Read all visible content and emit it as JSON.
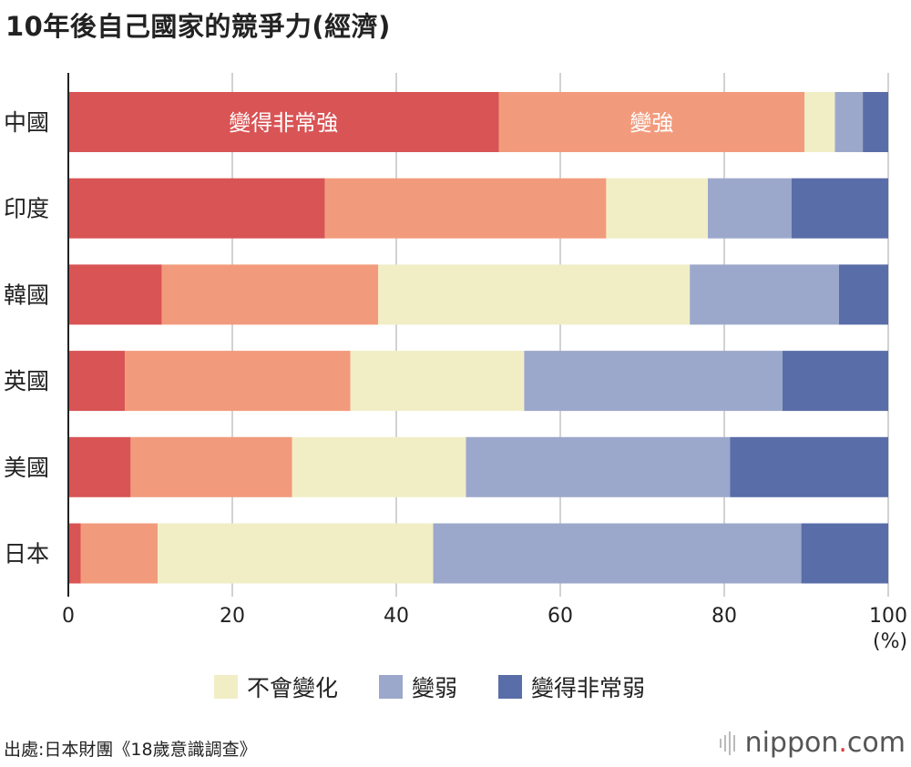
{
  "title": "10年後自己國家的競爭力(經濟)",
  "chart_data": {
    "type": "bar",
    "orientation": "horizontal",
    "stacked": true,
    "categories": [
      "中國",
      "印度",
      "韓國",
      "英國",
      "美國",
      "日本"
    ],
    "series": [
      {
        "name": "變得非常強",
        "color": "#d95455",
        "values": [
          52.5,
          31.3,
          11.4,
          6.9,
          7.6,
          1.5
        ]
      },
      {
        "name": "變強",
        "color": "#f29b7c",
        "values": [
          37.3,
          34.3,
          26.4,
          27.5,
          19.7,
          9.4
        ]
      },
      {
        "name": "不會變化",
        "color": "#f1eec6",
        "values": [
          3.7,
          12.4,
          38.0,
          21.2,
          21.2,
          33.6
        ]
      },
      {
        "name": "變弱",
        "color": "#9ca8cb",
        "values": [
          3.4,
          10.2,
          18.2,
          31.5,
          32.2,
          44.9
        ]
      },
      {
        "name": "變得非常弱",
        "color": "#596da8",
        "values": [
          3.1,
          11.8,
          6.0,
          12.9,
          19.3,
          10.6
        ]
      }
    ],
    "xlim": [
      0,
      100
    ],
    "xticks": [
      0,
      20,
      40,
      60,
      80,
      100
    ],
    "xunit": "(%)",
    "grid": true,
    "legend_position": "bottom",
    "in_bar_labels": [
      "變得非常強",
      "變強"
    ]
  },
  "legend": [
    {
      "label": "不會變化",
      "color": "#f1eec6"
    },
    {
      "label": "變弱",
      "color": "#9ca8cb"
    },
    {
      "label": "變得非常弱",
      "color": "#596da8"
    }
  ],
  "source": "出處:日本財團《18歲意識調查》",
  "brand": {
    "name": "nippon",
    "dot": ".",
    "suffix": "com"
  }
}
